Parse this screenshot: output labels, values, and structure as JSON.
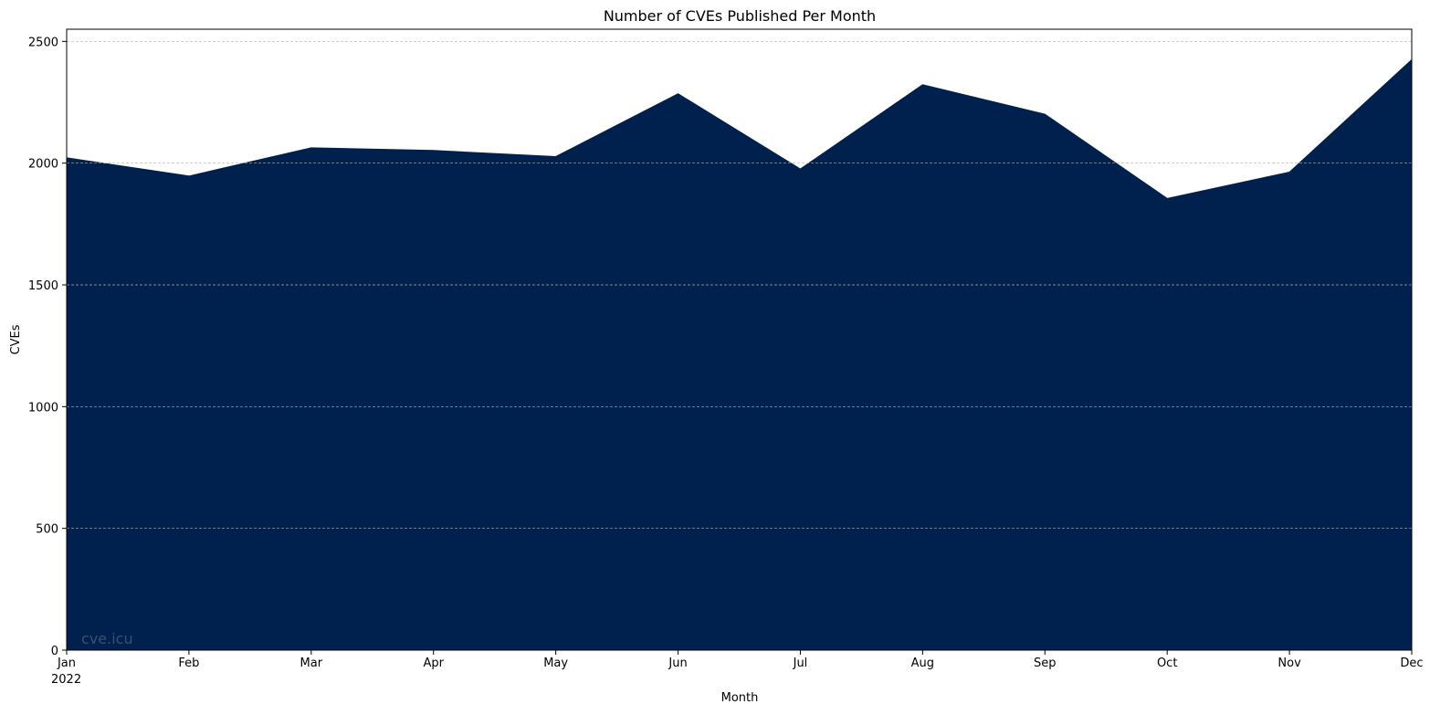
{
  "chart_data": {
    "type": "area",
    "title": "Number of CVEs Published Per Month",
    "xlabel": "Month",
    "ylabel": "CVEs",
    "x": [
      "2022-01",
      "2022-02",
      "2022-03",
      "2022-04",
      "2022-05",
      "2022-06",
      "2022-07",
      "2022-08",
      "2022-09",
      "2022-10",
      "2022-11",
      "2022-12"
    ],
    "x_tick_labels": [
      "Jan",
      "Feb",
      "Mar",
      "Apr",
      "May",
      "Jun",
      "Jul",
      "Aug",
      "Sep",
      "Oct",
      "Nov",
      "Dec"
    ],
    "x_year_label": "2022",
    "series": [
      {
        "values": [
          2022,
          1947,
          2063,
          2052,
          2027,
          2285,
          1976,
          2322,
          2201,
          1855,
          1963,
          2425
        ],
        "color": "#00214d"
      }
    ],
    "ylim": [
      0,
      2550
    ],
    "y_ticks": [
      0,
      500,
      1000,
      1500,
      2000,
      2500
    ],
    "grid": "y",
    "gridline_color": "#b0b0b0"
  },
  "watermark": {
    "text": "cve.icu",
    "color": "#3b4f6e"
  }
}
